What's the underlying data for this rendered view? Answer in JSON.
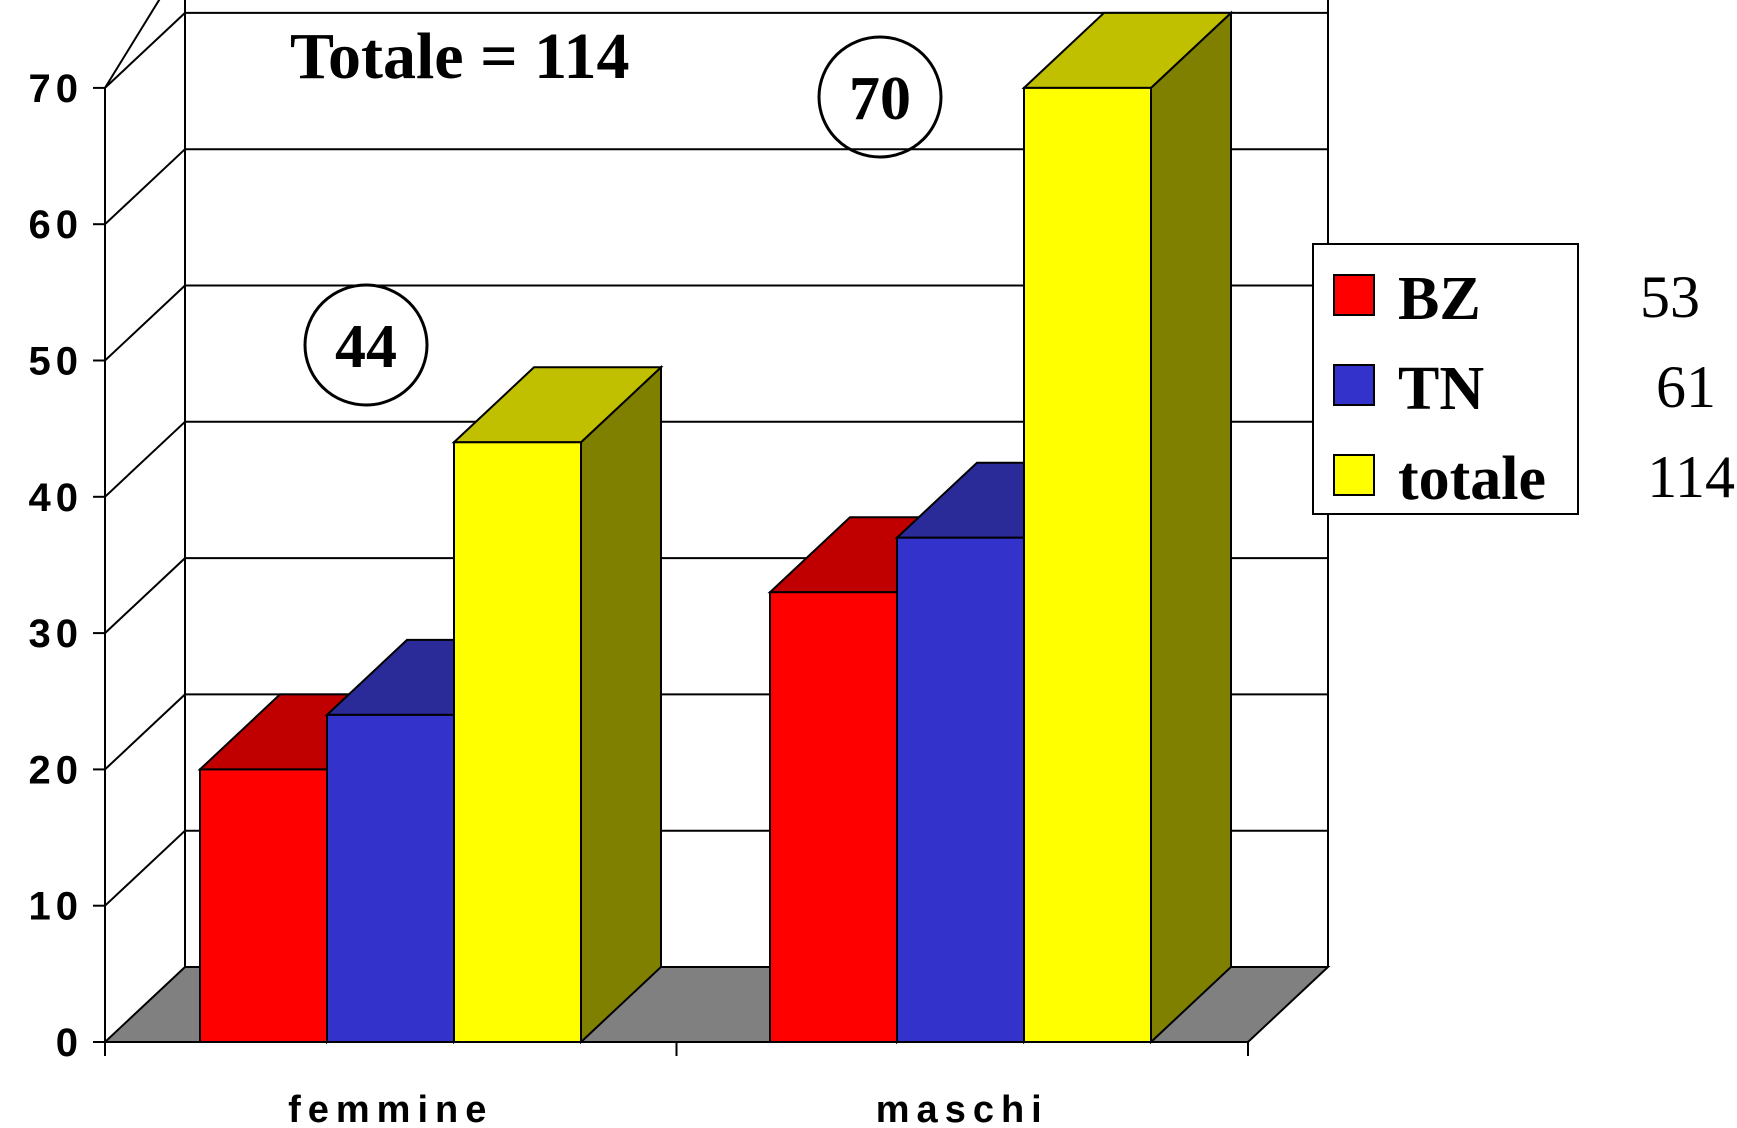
{
  "chart_data": {
    "type": "bar",
    "title": "Totale = 114",
    "categories": [
      "femmine",
      "maschi"
    ],
    "series": [
      {
        "name": "BZ",
        "color": "#ff0000",
        "top_color": "#c00000",
        "values": [
          20,
          33
        ]
      },
      {
        "name": "TN",
        "color": "#3333cc",
        "top_color": "#2a2a99",
        "values": [
          24,
          37
        ]
      },
      {
        "name": "totale",
        "color": "#ffff00",
        "top_color": "#c0c000",
        "side_color": "#808000",
        "values": [
          44,
          70
        ]
      }
    ],
    "ylim": [
      0,
      70
    ],
    "yticks": [
      "0",
      "10",
      "20",
      "30",
      "40",
      "50",
      "60",
      "70"
    ],
    "annotations": [
      {
        "category": "femmine",
        "text": "44"
      },
      {
        "category": "maschi",
        "text": "70"
      }
    ],
    "legend": {
      "placement": "right",
      "totals": [
        "53",
        "61",
        "114"
      ]
    },
    "grid": true,
    "floor_color": "#808080"
  }
}
